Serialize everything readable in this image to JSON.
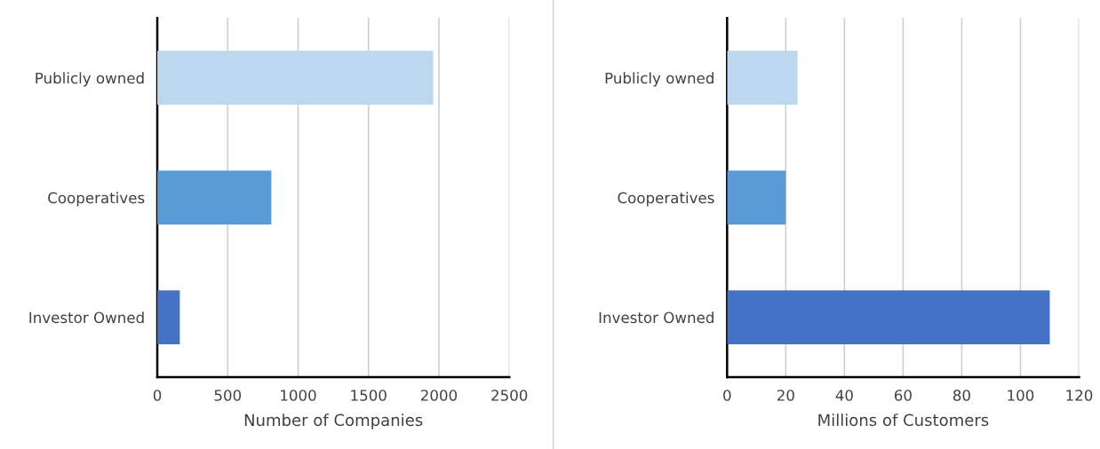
{
  "chart_data": [
    {
      "type": "bar",
      "orientation": "horizontal",
      "categories": [
        "Publicly owned",
        "Cooperatives",
        "Investor Owned"
      ],
      "values": [
        1960,
        810,
        160
      ],
      "colors": [
        "#bdd7ee",
        "#5b9bd5",
        "#4472c4"
      ],
      "xlabel": "Number of Companies",
      "xlim": [
        0,
        2500
      ],
      "xticks": [
        0,
        500,
        1000,
        1500,
        2000,
        2500
      ],
      "grid": "x",
      "legend": false
    },
    {
      "type": "bar",
      "orientation": "horizontal",
      "categories": [
        "Publicly owned",
        "Cooperatives",
        "Investor Owned"
      ],
      "values": [
        24,
        20,
        110
      ],
      "colors": [
        "#bdd7ee",
        "#5b9bd5",
        "#4472c4"
      ],
      "xlabel": "Millions of Customers",
      "xlim": [
        0,
        120
      ],
      "xticks": [
        0,
        20,
        40,
        60,
        80,
        100,
        120
      ],
      "grid": "x",
      "legend": false
    }
  ]
}
